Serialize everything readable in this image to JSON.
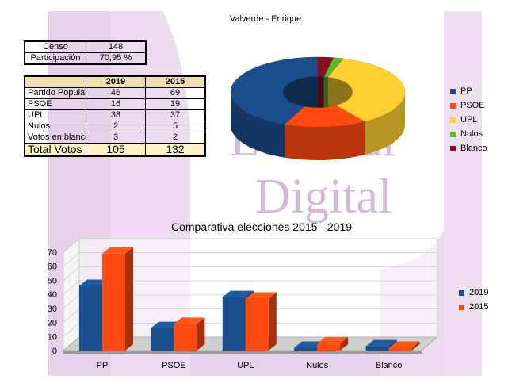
{
  "page_title": "Valverde - Enrique",
  "watermark": "LeónSur Digital",
  "census": {
    "rows": [
      {
        "label": "Censo",
        "value": "148"
      },
      {
        "label": "Participación",
        "value": "70,95 %"
      }
    ]
  },
  "votes_table": {
    "headers": [
      "",
      "2019",
      "2015"
    ],
    "rows": [
      {
        "label": "Partido Popular",
        "v2019": "46",
        "v2015": "69"
      },
      {
        "label": "PSOE",
        "v2019": "16",
        "v2015": "19"
      },
      {
        "label": "UPL",
        "v2019": "38",
        "v2015": "37"
      },
      {
        "label": "Nulos",
        "v2019": "2",
        "v2015": "5"
      },
      {
        "label": "Votos en blanco",
        "v2019": "3",
        "v2015": "2"
      }
    ],
    "total": {
      "label": "Total Votos",
      "v2019": "105",
      "v2015": "132"
    }
  },
  "colors": {
    "PP": "#1a4e8c",
    "PSOE": "#ff4a12",
    "UPL": "#ffd030",
    "Nulos": "#5cb82c",
    "Blanco": "#8a0f22",
    "watermark": "#e4cfe8"
  },
  "chart_data": [
    {
      "type": "pie",
      "variant": "donut-3d",
      "title": "",
      "labels": [
        "PP",
        "PSOE",
        "UPL",
        "Nulos",
        "Blanco"
      ],
      "values": [
        46,
        16,
        38,
        2,
        3
      ],
      "legend_position": "right"
    },
    {
      "type": "bar",
      "variant": "3d",
      "title": "Comparativa elecciones 2015 - 2019",
      "categories": [
        "PP",
        "PSOE",
        "UPL",
        "Nulos",
        "Blanco"
      ],
      "series": [
        {
          "name": "2019",
          "values": [
            46,
            16,
            38,
            2,
            3
          ]
        },
        {
          "name": "2015",
          "values": [
            69,
            19,
            37,
            5,
            2
          ]
        }
      ],
      "ylim": [
        0,
        70
      ],
      "yticks": [
        0,
        10,
        20,
        30,
        40,
        50,
        60,
        70
      ],
      "grid": true,
      "legend_position": "right"
    }
  ]
}
